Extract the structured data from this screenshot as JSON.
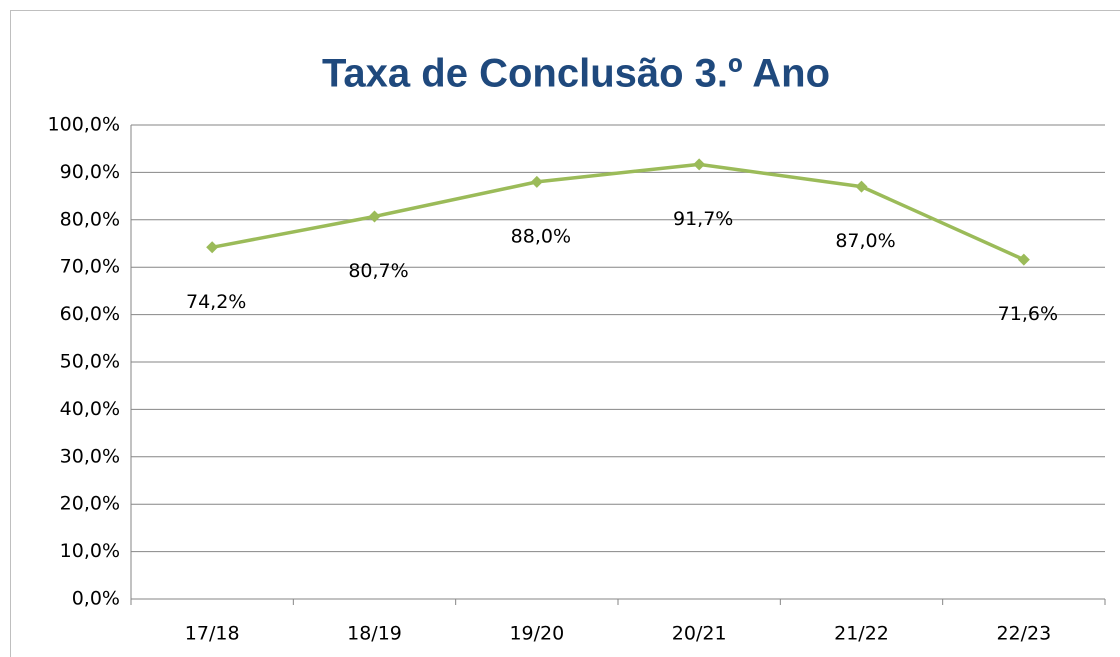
{
  "chart_data": {
    "type": "line",
    "title": "Taxa de Conclusão 3.º Ano",
    "categories": [
      "17/18",
      "18/19",
      "19/20",
      "20/21",
      "21/22",
      "22/23"
    ],
    "values": [
      74.2,
      80.7,
      88.0,
      91.7,
      87.0,
      71.6
    ],
    "value_labels": [
      "74,2%",
      "80,7%",
      "88,0%",
      "91,7%",
      "87,0%",
      "71,6%"
    ],
    "color": "#9bbb59",
    "ylim": [
      0,
      100
    ],
    "yticks": [
      {
        "value": 0,
        "label": "0,0%"
      },
      {
        "value": 10,
        "label": "10,0%"
      },
      {
        "value": 20,
        "label": "20,0%"
      },
      {
        "value": 30,
        "label": "30,0%"
      },
      {
        "value": 40,
        "label": "40,0%"
      },
      {
        "value": 50,
        "label": "50,0%"
      },
      {
        "value": 60,
        "label": "60,0%"
      },
      {
        "value": 70,
        "label": "70,0%"
      },
      {
        "value": 80,
        "label": "80,0%"
      },
      {
        "value": 90,
        "label": "90,0%"
      },
      {
        "value": 100,
        "label": "100,0%"
      }
    ],
    "grid": true
  }
}
